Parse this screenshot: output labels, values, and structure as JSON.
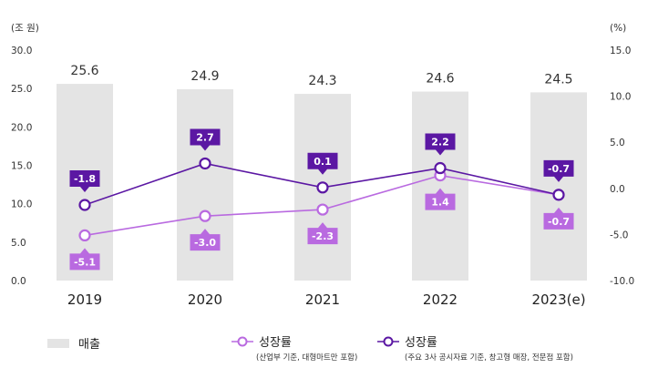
{
  "chart_data": {
    "type": "bar+line",
    "left_axis_unit": "(조 원)",
    "right_axis_unit": "(%)",
    "left_ticks": [
      "30.0",
      "25.0",
      "20.0",
      "15.0",
      "10.0",
      "5.0",
      "0.0"
    ],
    "right_ticks": [
      "15.0",
      "10.0",
      "5.0",
      "0.0",
      "-5.0",
      "-10.0"
    ],
    "left_ylim": [
      0,
      30
    ],
    "right_ylim": [
      -10,
      15
    ],
    "categories": [
      "2019",
      "2020",
      "2021",
      "2022",
      "2023(e)"
    ],
    "bars": {
      "name": "매출",
      "values": [
        25.6,
        24.9,
        24.3,
        24.6,
        24.5
      ],
      "labels": [
        "25.6",
        "24.9",
        "24.3",
        "24.6",
        "24.5"
      ],
      "color": "#e4e4e4"
    },
    "series": [
      {
        "name": "성장률",
        "note": "(산업부 기준, 대형마트만 포함)",
        "values": [
          -5.1,
          -3.0,
          -2.3,
          1.4,
          -0.7
        ],
        "labels": [
          "-5.1",
          "-3.0",
          "-2.3",
          "1.4",
          "-0.7"
        ],
        "color": "#b96ae0",
        "label_position": "below"
      },
      {
        "name": "성장률",
        "note": "(주요 3사 공시자료 기준, 창고형 매장, 전문점 포함)",
        "values": [
          -1.8,
          2.7,
          0.1,
          2.2,
          -0.7
        ],
        "labels": [
          "-1.8",
          "2.7",
          "0.1",
          "2.2",
          "-0.7"
        ],
        "color": "#5b17a3",
        "label_position": "above"
      }
    ]
  }
}
